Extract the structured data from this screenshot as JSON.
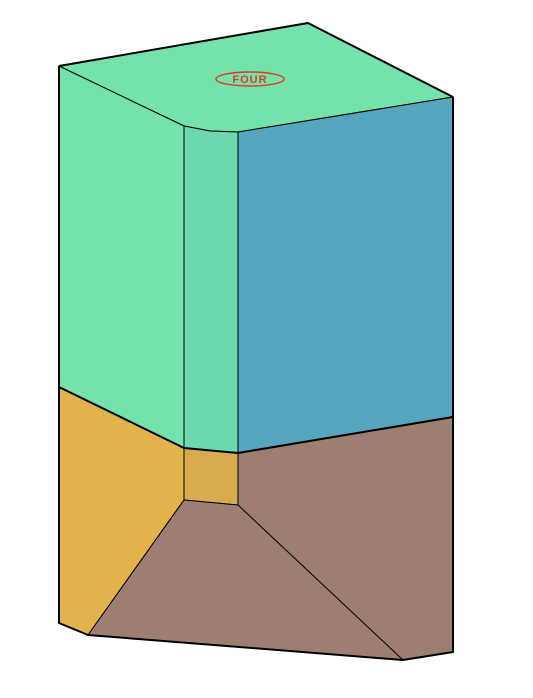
{
  "diagram": {
    "colors": {
      "top": "#74e3ab",
      "front_left_upper": "#74e3ab",
      "chamfer_upper": "#6bd8b0",
      "right_upper": "#55a6bd",
      "front_left_lower": "#e3b34b",
      "chamfer_lower": "#d8ab50",
      "bottom_face": "#9e7e72",
      "stamp": "#e03a2a"
    },
    "stamp_text": "FOUR"
  }
}
